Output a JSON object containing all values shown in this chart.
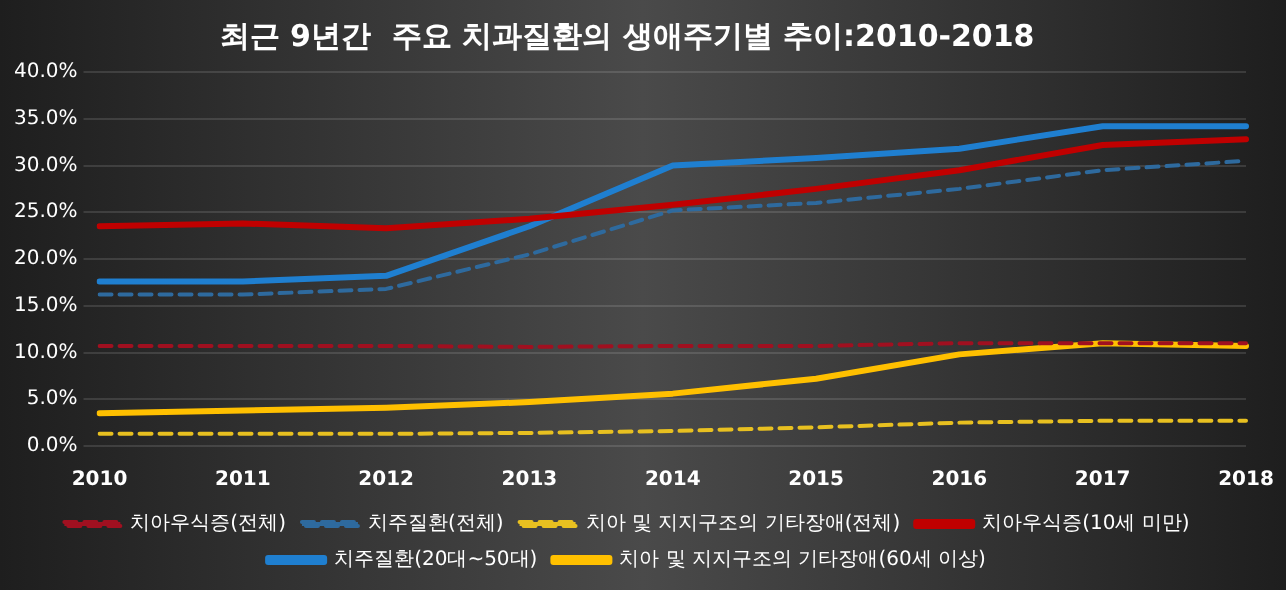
{
  "chart_data": {
    "type": "line",
    "title": "최근 9년간  주요 치과질환의 생애주기별 추이:2010-2018",
    "categories": [
      "2010",
      "2011",
      "2012",
      "2013",
      "2014",
      "2015",
      "2016",
      "2017",
      "2018"
    ],
    "ylim": [
      0,
      40
    ],
    "yticks": [
      {
        "value": 0,
        "label": "0.0%"
      },
      {
        "value": 5,
        "label": "5.0%"
      },
      {
        "value": 10,
        "label": "10.0%"
      },
      {
        "value": 15,
        "label": "15.0%"
      },
      {
        "value": 20,
        "label": "20.0%"
      },
      {
        "value": 25,
        "label": "25.0%"
      },
      {
        "value": 30,
        "label": "30.0%"
      },
      {
        "value": 35,
        "label": "35.0%"
      },
      {
        "value": 40,
        "label": "40.0%"
      }
    ],
    "grid": "y",
    "legend": "bottom",
    "marker": "none",
    "series": [
      {
        "name": "치아우식증(전체)",
        "color": "#a01020",
        "line_style": "dashed",
        "values": [
          10.7,
          10.7,
          10.7,
          10.6,
          10.7,
          10.7,
          11.0,
          11.0,
          11.0
        ]
      },
      {
        "name": "치주질환(전체)",
        "color": "#2e6a9e",
        "line_style": "dashed",
        "values": [
          16.2,
          16.2,
          16.8,
          20.5,
          25.2,
          26.0,
          27.5,
          29.5,
          30.5
        ]
      },
      {
        "name": "치아 및 지지구조의 기타장애(전체)",
        "color": "#e8c020",
        "line_style": "dashed",
        "values": [
          1.3,
          1.3,
          1.3,
          1.4,
          1.6,
          2.0,
          2.5,
          2.7,
          2.7
        ]
      },
      {
        "name": "치아우식증(10세 미만)",
        "color": "#c00000",
        "line_style": "solid",
        "values": [
          23.5,
          23.8,
          23.3,
          24.3,
          25.8,
          27.5,
          29.5,
          32.2,
          32.8
        ]
      },
      {
        "name": "치주질환(20대~50대)",
        "color": "#1f7fd0",
        "line_style": "solid",
        "values": [
          17.6,
          17.6,
          18.2,
          23.5,
          30.0,
          30.8,
          31.8,
          34.2,
          34.2
        ]
      },
      {
        "name": "치아 및 지지구조의 기타장애(60세 이상)",
        "color": "#ffc000",
        "line_style": "solid",
        "values": [
          3.5,
          3.8,
          4.1,
          4.7,
          5.6,
          7.2,
          9.8,
          11.0,
          10.7
        ]
      }
    ]
  }
}
